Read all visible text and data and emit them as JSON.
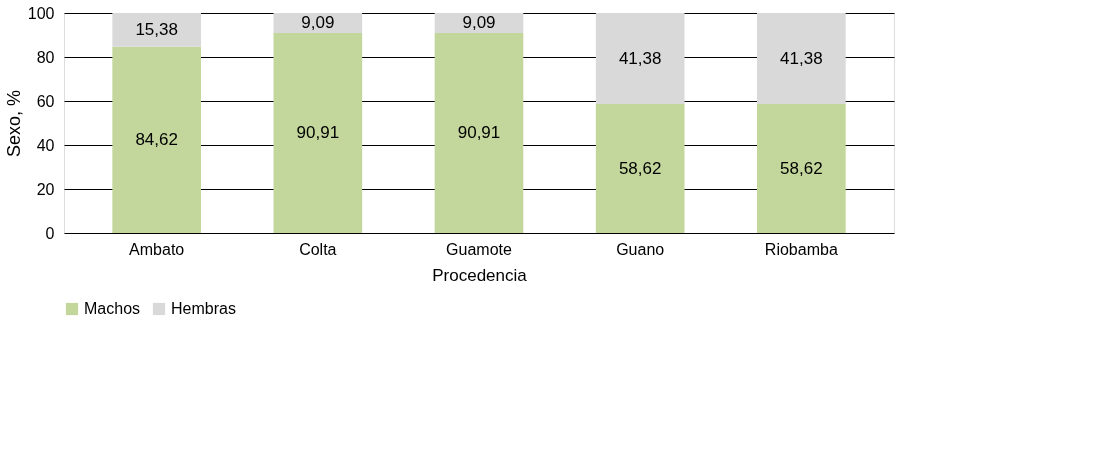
{
  "chart_data": {
    "type": "bar",
    "stacked": true,
    "xlabel": "Procedencia",
    "ylabel": "Sexo, %",
    "categories": [
      "Ambato",
      "Colta",
      "Guamote",
      "Guano",
      "Riobamba"
    ],
    "series": [
      {
        "name": "Machos",
        "color": "#c3d69b",
        "values": [
          84.62,
          90.91,
          90.91,
          58.62,
          58.62
        ],
        "value_labels": [
          "84,62",
          "90,91",
          "90,91",
          "58,62",
          "58,62"
        ]
      },
      {
        "name": "Hembras",
        "color": "#d9d9d9",
        "values": [
          15.38,
          9.09,
          9.09,
          41.38,
          41.38
        ],
        "value_labels": [
          "15,38",
          "9,09",
          "9,09",
          "41,38",
          "41,38"
        ]
      }
    ],
    "ylim": [
      0,
      100
    ],
    "yticks": [
      0,
      20,
      40,
      60,
      80,
      100
    ],
    "grid": "y",
    "legend": "bottom left"
  }
}
